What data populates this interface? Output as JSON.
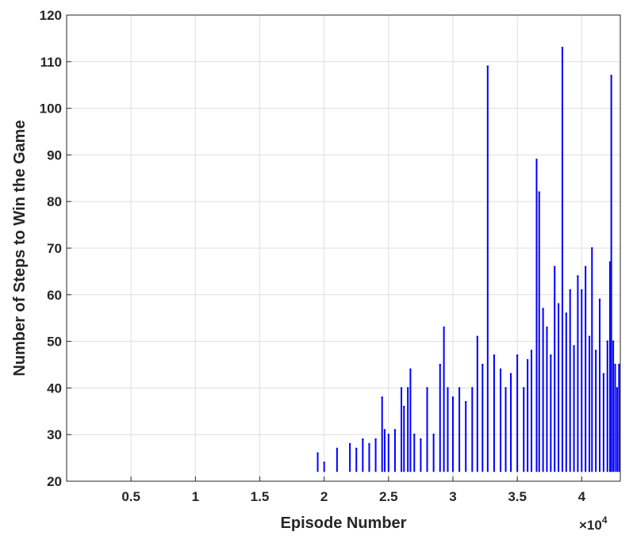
{
  "chart_data": {
    "type": "line",
    "title": "",
    "xlabel": "Episode Number",
    "ylabel": "Number of Steps to Win the Game",
    "x_exponent_label": "×10",
    "x_exponent_power": "4",
    "xlim": [
      0,
      43000
    ],
    "ylim": [
      20,
      120
    ],
    "x_ticks": [
      5000,
      10000,
      15000,
      20000,
      25000,
      30000,
      35000,
      40000
    ],
    "x_tick_labels": [
      "0.5",
      "1",
      "1.5",
      "2",
      "2.5",
      "3",
      "3.5",
      "4"
    ],
    "y_ticks": [
      20,
      30,
      40,
      50,
      60,
      70,
      80,
      90,
      100,
      110,
      120
    ],
    "y_tick_labels": [
      "20",
      "30",
      "40",
      "50",
      "60",
      "70",
      "80",
      "90",
      "100",
      "110",
      "120"
    ],
    "grid": true,
    "series": [
      {
        "color": "#0000ff",
        "x": [
          19500,
          20000,
          21000,
          22000,
          22500,
          23000,
          23500,
          24000,
          24500,
          24700,
          25000,
          25500,
          26000,
          26200,
          26500,
          26700,
          27000,
          27500,
          28000,
          28500,
          29000,
          29300,
          29600,
          30000,
          30500,
          31000,
          31500,
          31900,
          32300,
          32700,
          33200,
          33700,
          34100,
          34500,
          35000,
          35500,
          35800,
          36100,
          36500,
          36700,
          37000,
          37300,
          37600,
          37900,
          38200,
          38500,
          38800,
          39100,
          39400,
          39700,
          40000,
          40300,
          40600,
          40800,
          41100,
          41400,
          41700,
          42000,
          42200,
          42300,
          42450,
          42600,
          42750,
          42900
        ],
        "y": [
          26,
          24,
          27,
          28,
          27,
          29,
          28,
          29,
          38,
          31,
          30,
          31,
          40,
          36,
          40,
          44,
          30,
          29,
          40,
          30,
          45,
          53,
          40,
          38,
          40,
          37,
          40,
          51,
          45,
          109,
          47,
          44,
          40,
          43,
          47,
          40,
          46,
          48,
          89,
          82,
          57,
          53,
          47,
          66,
          58,
          113,
          56,
          61,
          49,
          64,
          61,
          66,
          51,
          70,
          48,
          59,
          43,
          50,
          67,
          107,
          50,
          45,
          40,
          45
        ]
      }
    ]
  }
}
